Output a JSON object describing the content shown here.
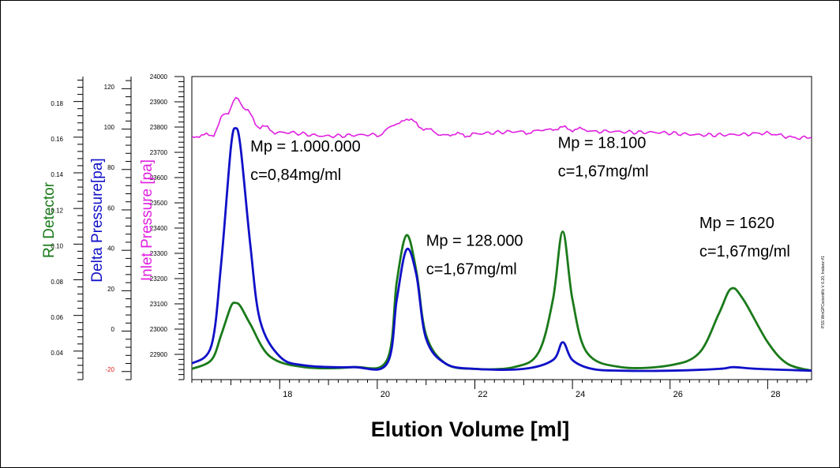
{
  "chart_data": {
    "type": "line",
    "xlabel": "Elution Volume [ml]",
    "xlim": [
      16.2,
      28.9
    ],
    "x_ticks": [
      18,
      20,
      22,
      24,
      26,
      28
    ],
    "axes": {
      "ri": {
        "label": "RI Detector",
        "color": "#1a7a1a",
        "ylim": [
          0.025,
          0.195
        ],
        "ticks": [
          "0.04",
          "0.06",
          "0.08",
          "0.10",
          "0.12",
          "0.14",
          "0.16",
          "0.18"
        ],
        "tick_values": [
          0.04,
          0.06,
          0.08,
          0.1,
          0.12,
          0.14,
          0.16,
          0.18
        ]
      },
      "delta_pressure": {
        "label": "Delta Pressure[pa]",
        "color": "#1010c8",
        "ylim": [
          -25,
          125
        ],
        "ticks": [
          "-20",
          "0",
          "20",
          "40",
          "60",
          "80",
          "100",
          "120"
        ],
        "tick_values": [
          -20,
          0,
          20,
          40,
          60,
          80,
          100,
          120
        ]
      },
      "inlet_pressure": {
        "label": "Inlet Pressure [pa]",
        "color": "#e020e0",
        "ylim": [
          22800,
          24000
        ],
        "ticks": [
          "22900",
          "23000",
          "23100",
          "23200",
          "23300",
          "23400",
          "23500",
          "23600",
          "23700",
          "23800",
          "23900",
          "24000"
        ],
        "tick_values": [
          22900,
          23000,
          23100,
          23200,
          23300,
          23400,
          23500,
          23600,
          23700,
          23800,
          23900,
          24000
        ]
      }
    },
    "series": [
      {
        "axis": "ri",
        "color": "#1a7a1a",
        "x": [
          16.2,
          16.6,
          16.8,
          17.0,
          17.1,
          17.2,
          17.4,
          17.8,
          18.5,
          19.5,
          20.2,
          20.4,
          20.6,
          20.8,
          21.0,
          21.4,
          22.0,
          22.8,
          23.3,
          23.6,
          23.8,
          24.0,
          24.3,
          25.0,
          26.0,
          26.6,
          27.0,
          27.25,
          27.5,
          28.0,
          28.4,
          28.9
        ],
        "values": [
          0.031,
          0.036,
          0.05,
          0.066,
          0.068,
          0.066,
          0.056,
          0.038,
          0.032,
          0.032,
          0.036,
          0.08,
          0.106,
          0.086,
          0.05,
          0.034,
          0.031,
          0.032,
          0.04,
          0.07,
          0.108,
          0.07,
          0.04,
          0.032,
          0.033,
          0.04,
          0.062,
          0.076,
          0.07,
          0.046,
          0.034,
          0.03
        ]
      },
      {
        "axis": "ri",
        "color": "#1010c8",
        "x": [
          16.2,
          16.6,
          16.8,
          17.0,
          17.1,
          17.2,
          17.4,
          17.6,
          18.0,
          18.5,
          19.5,
          20.2,
          20.4,
          20.6,
          20.8,
          21.0,
          21.4,
          22.0,
          23.0,
          23.6,
          23.8,
          24.0,
          24.4,
          25.0,
          26.0,
          27.0,
          27.3,
          27.8,
          28.9
        ],
        "values": [
          0.034,
          0.044,
          0.09,
          0.155,
          0.166,
          0.155,
          0.1,
          0.058,
          0.038,
          0.033,
          0.032,
          0.034,
          0.07,
          0.098,
          0.084,
          0.048,
          0.034,
          0.031,
          0.031,
          0.036,
          0.046,
          0.036,
          0.031,
          0.03,
          0.03,
          0.031,
          0.032,
          0.031,
          0.03
        ]
      },
      {
        "axis": "inlet_pressure",
        "color": "#e020e0",
        "x": [
          16.2,
          16.6,
          16.9,
          17.1,
          17.3,
          17.6,
          18.0,
          19.0,
          20.0,
          20.4,
          20.6,
          20.9,
          21.3,
          22.0,
          23.0,
          23.8,
          24.5,
          25.5,
          26.5,
          27.5,
          28.9
        ],
        "values": [
          23760,
          23770,
          23850,
          23915,
          23870,
          23800,
          23780,
          23760,
          23770,
          23810,
          23835,
          23800,
          23770,
          23770,
          23780,
          23795,
          23785,
          23775,
          23770,
          23775,
          23760
        ]
      }
    ],
    "annotations": [
      {
        "x": 17.4,
        "y": 0.153,
        "lines": [
          "Mp = 1.000.000",
          "c=0,84mg/ml"
        ]
      },
      {
        "x": 21.0,
        "y": 0.1,
        "lines": [
          "Mp = 128.000",
          "c=1,67mg/ml"
        ]
      },
      {
        "x": 23.7,
        "y": 0.155,
        "lines": [
          "Mp = 18.100",
          "c=1,67mg/ml"
        ]
      },
      {
        "x": 26.6,
        "y": 0.11,
        "lines": [
          "Mp = 1620",
          "c=1,67mg/ml"
        ]
      }
    ],
    "watermark": "PSS WinGPCscientific V 6.20, Instanz #1"
  }
}
